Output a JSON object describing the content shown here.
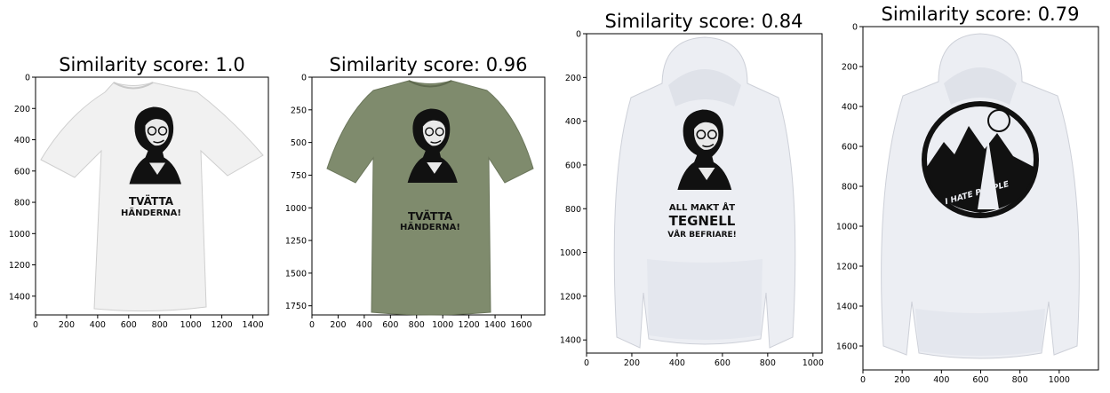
{
  "chart_data": [
    {
      "type": "image",
      "title": "Similarity score: 1.0",
      "image_subject": "white t-shirt with portrait print",
      "print_text": [
        "TVÄTTA",
        "HÄNDERNA!"
      ],
      "garment_color": "#f1f1f1",
      "xlim": [
        0,
        1500
      ],
      "ylim": [
        1520,
        0
      ],
      "xticks": [
        0,
        200,
        400,
        600,
        800,
        1000,
        1200,
        1400
      ],
      "yticks": [
        0,
        200,
        400,
        600,
        800,
        1000,
        1200,
        1400
      ]
    },
    {
      "type": "image",
      "title": "Similarity score: 0.96",
      "image_subject": "olive green t-shirt with portrait print",
      "print_text": [
        "TVÄTTA",
        "HÄNDERNA!"
      ],
      "garment_color": "#7f8b6d",
      "xlim": [
        0,
        1780
      ],
      "ylim": [
        1820,
        0
      ],
      "xticks": [
        0,
        200,
        400,
        600,
        800,
        1000,
        1200,
        1400,
        1600
      ],
      "yticks": [
        0,
        250,
        500,
        750,
        1000,
        1250,
        1500,
        1750
      ]
    },
    {
      "type": "image",
      "title": "Similarity score: 0.84",
      "image_subject": "white hoodie with portrait print",
      "print_text": [
        "ALL MAKT ÅT",
        "TEGNELL",
        "VÅR BEFRIARE!"
      ],
      "garment_color": "#eceef3",
      "xlim": [
        0,
        1040
      ],
      "ylim": [
        1460,
        0
      ],
      "xticks": [
        0,
        200,
        400,
        600,
        800,
        1000
      ],
      "yticks": [
        0,
        200,
        400,
        600,
        800,
        1000,
        1200,
        1400
      ]
    },
    {
      "type": "image",
      "title": "Similarity score: 0.79",
      "image_subject": "white hoodie with circular mountain print",
      "print_text": [
        "I HATE PEOPLE"
      ],
      "garment_color": "#eceef3",
      "xlim": [
        0,
        1200
      ],
      "ylim": [
        1720,
        0
      ],
      "xticks": [
        0,
        200,
        400,
        600,
        800,
        1000
      ],
      "yticks": [
        0,
        200,
        400,
        600,
        800,
        1000,
        1200,
        1400,
        1600
      ]
    }
  ]
}
